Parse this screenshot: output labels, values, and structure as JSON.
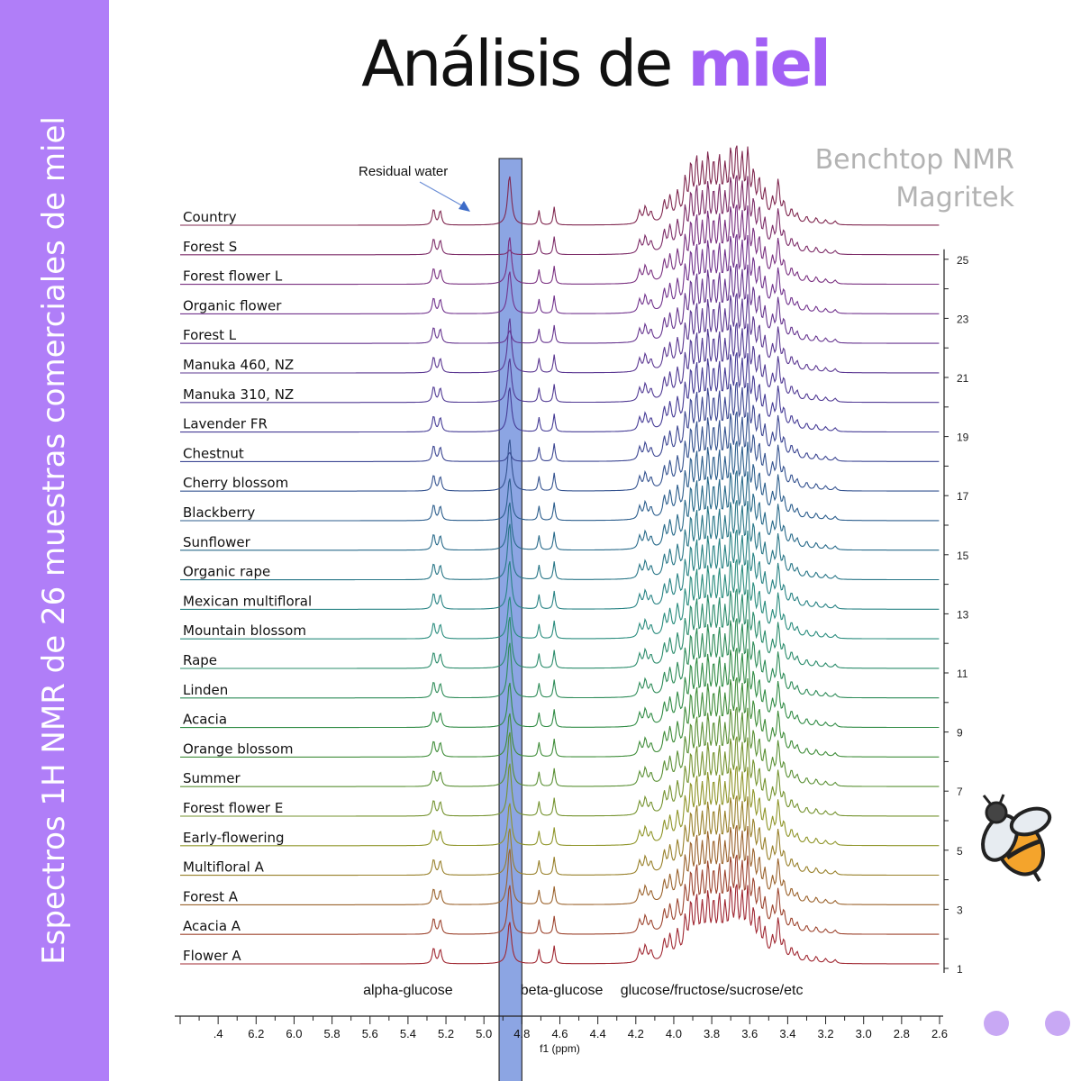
{
  "sidebar": {
    "text": "Espectros  1H NMR de 26 muestras comerciales de miel"
  },
  "title": {
    "main": "Análisis de ",
    "accent": "miel"
  },
  "brand": {
    "line1": "Benchtop NMR",
    "line2": "Magritek"
  },
  "colors": {
    "sidebar": "#b07ef8",
    "accent": "#a260f5",
    "highlight": "#6f8fdc",
    "brand_text": "#b3b3b3",
    "dots": "#c8a8f4"
  },
  "icons": {
    "bee": "bee-icon"
  },
  "chart_data": {
    "type": "line",
    "title": "",
    "xlabel": "f1 (ppm)",
    "ylabel": "",
    "xlim": [
      6.6,
      2.6
    ],
    "x_axis_reversed": true,
    "x_tick_labels": [
      ".4",
      "6.2",
      "6.0",
      "5.8",
      "5.6",
      "5.4",
      "5.2",
      "5.0",
      "4.8",
      "4.6",
      "4.4",
      "4.2",
      "4.0",
      "3.8",
      "3.6",
      "3.4",
      "3.2",
      "3.0",
      "2.8",
      "2.6"
    ],
    "series_labels": [
      "Country",
      "Forest S",
      "Forest flower L",
      "Organic flower",
      "Forest L",
      "Manuka 460, NZ",
      "Manuka 310, NZ",
      "Lavender FR",
      "Chestnut",
      "Cherry blossom",
      "Blackberry",
      "Sunflower",
      "Organic rape",
      "Mexican multifloral",
      "Mountain blossom",
      "Rape",
      "Linden",
      "Acacia",
      "Orange blossom",
      "Summer",
      "Forest flower E",
      "Early-flowering",
      "Multifloral  A",
      "Forest A",
      "Acacia A",
      "Flower A"
    ],
    "spectrum_index_labels": [
      "25",
      "23",
      "21",
      "19",
      "17",
      "15",
      "13",
      "11",
      "9",
      "7",
      "5",
      "3",
      "1"
    ],
    "spectrum_index_values": [
      25,
      23,
      21,
      19,
      17,
      15,
      13,
      11,
      9,
      7,
      5,
      3,
      1
    ],
    "region_labels": [
      "alpha-glucose",
      "beta-glucose",
      "glucose/fructose/sucrose/etc"
    ],
    "annotation": "Residual water",
    "highlight_range_ppm": [
      4.92,
      4.8
    ],
    "grid": false,
    "legend": "none"
  }
}
